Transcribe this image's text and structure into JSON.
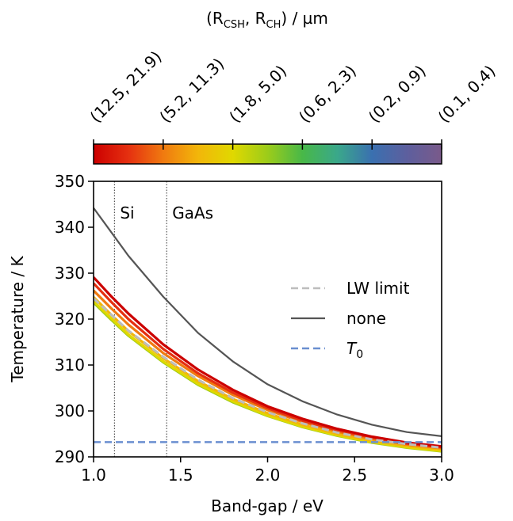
{
  "chart_data": {
    "type": "line",
    "title": "",
    "xlabel": "Band-gap / eV",
    "ylabel": "Temperature / K",
    "xlim": [
      1.0,
      3.0
    ],
    "ylim": [
      290,
      350
    ],
    "xticks": [
      "1.0",
      "1.5",
      "2.0",
      "2.5",
      "3.0"
    ],
    "yticks": [
      "290",
      "300",
      "310",
      "320",
      "330",
      "340",
      "350"
    ],
    "grid": false,
    "legend_position": "right",
    "colorbar": {
      "label": "(R_CSH, R_CH) / µm",
      "label_main": "(R",
      "label_sub1": "CSH",
      "label_mid": ", R",
      "label_sub2": "CH",
      "label_end": ") / µm",
      "ticks": [
        "(12.5, 21.9)",
        "(5.2, 11.3)",
        "(1.8, 5.0)",
        "(0.6, 2.3)",
        "(0.2, 0.9)",
        "(0.1, 0.4)"
      ],
      "colors": [
        "#cc0000",
        "#e53010",
        "#f07a10",
        "#f2b60a",
        "#e0d800",
        "#9ccc1a",
        "#48b848",
        "#3aa88a",
        "#3a70b0",
        "#5d5f9e",
        "#7a5a8a"
      ]
    },
    "vlines": [
      {
        "label": "Si",
        "x": 1.12
      },
      {
        "label": "GaAs",
        "x": 1.42
      }
    ],
    "x": [
      1.0,
      1.1,
      1.2,
      1.4,
      1.6,
      1.8,
      2.0,
      2.2,
      2.4,
      2.6,
      2.8,
      3.0
    ],
    "series": [
      {
        "name": "LW limit",
        "color": "#bdbdbd",
        "dash": true,
        "width": 3,
        "values": [
          324.5,
          321.0,
          317.5,
          311.8,
          306.8,
          302.8,
          299.7,
          297.3,
          295.3,
          293.8,
          292.8,
          292.0
        ]
      },
      {
        "name": "none",
        "color": "#555555",
        "dash": false,
        "width": 2.2,
        "values": [
          344.2,
          339.0,
          333.8,
          324.9,
          317.0,
          310.8,
          305.8,
          302.1,
          299.2,
          297.0,
          295.4,
          294.5
        ]
      },
      {
        "name": "T0",
        "color": "#6a8fd0",
        "dash": true,
        "width": 2.5,
        "values": [
          293.2,
          293.2,
          293.2,
          293.2,
          293.2,
          293.2,
          293.2,
          293.2,
          293.2,
          293.2,
          293.2,
          293.2
        ]
      }
    ],
    "colored_series": [
      {
        "color": "#cc0000",
        "values": [
          329.1,
          325.0,
          321.2,
          314.5,
          309.0,
          304.6,
          301.0,
          298.3,
          296.1,
          294.4,
          293.1,
          292.3
        ]
      },
      {
        "color": "#e53010",
        "values": [
          327.8,
          323.8,
          320.0,
          313.5,
          308.2,
          304.0,
          300.6,
          297.9,
          295.8,
          294.2,
          292.9,
          292.1
        ]
      },
      {
        "color": "#f07a10",
        "values": [
          326.2,
          322.4,
          318.8,
          312.6,
          307.6,
          303.5,
          300.2,
          297.6,
          295.5,
          293.9,
          292.7,
          291.9
        ]
      },
      {
        "color": "#f2b60a",
        "values": [
          324.8,
          321.0,
          317.4,
          311.5,
          306.5,
          302.6,
          299.5,
          297.0,
          295.0,
          293.5,
          292.4,
          291.6
        ]
      },
      {
        "color": "#e0d800",
        "values": [
          323.9,
          320.2,
          316.6,
          310.8,
          305.9,
          302.1,
          299.0,
          296.6,
          294.7,
          293.2,
          292.1,
          291.3
        ]
      },
      {
        "color": "#9ccc1a",
        "values": [
          323.6,
          319.9,
          316.4,
          310.6,
          305.7,
          301.9,
          298.9,
          296.5,
          294.6,
          293.1,
          292.0,
          291.2
        ]
      }
    ],
    "legend": [
      {
        "label": "LW limit",
        "color": "#bdbdbd",
        "dash": true
      },
      {
        "label": "none",
        "color": "#555555",
        "dash": false
      },
      {
        "label": "T",
        "sub": "0",
        "color": "#6a8fd0",
        "dash": true
      }
    ]
  }
}
